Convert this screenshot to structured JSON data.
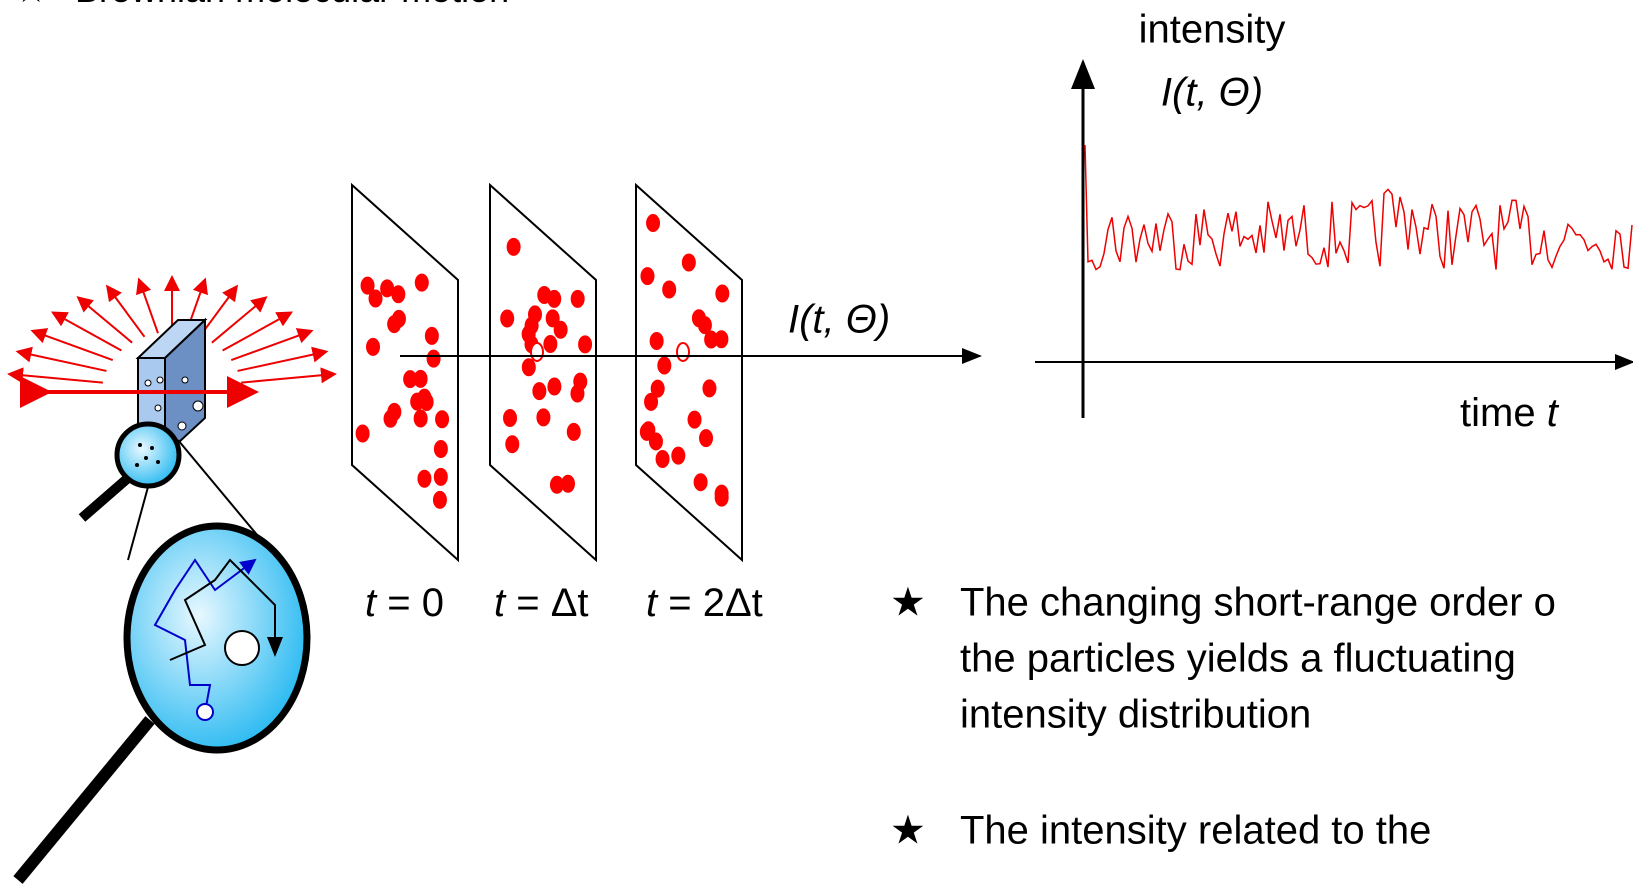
{
  "header": {
    "bullet": "★",
    "title": "Brownian molecular motion"
  },
  "beam_label": "I(t, Θ)",
  "time_labels": [
    {
      "var": "t",
      "rest": " = 0"
    },
    {
      "var": "t",
      "rest": " = Δt"
    },
    {
      "var": "t",
      "rest": " = 2Δt"
    }
  ],
  "graph": {
    "y_label": "intensity",
    "y_symbol": "I(t, Θ)",
    "x_label": "time",
    "x_var": "t"
  },
  "bullets": [
    {
      "star": "★",
      "lines": [
        "The changing short-range order o",
        "the particles yields a fluctuating",
        "intensity distribution"
      ]
    },
    {
      "star": "★",
      "lines": [
        "The intensity related to the"
      ]
    }
  ]
}
